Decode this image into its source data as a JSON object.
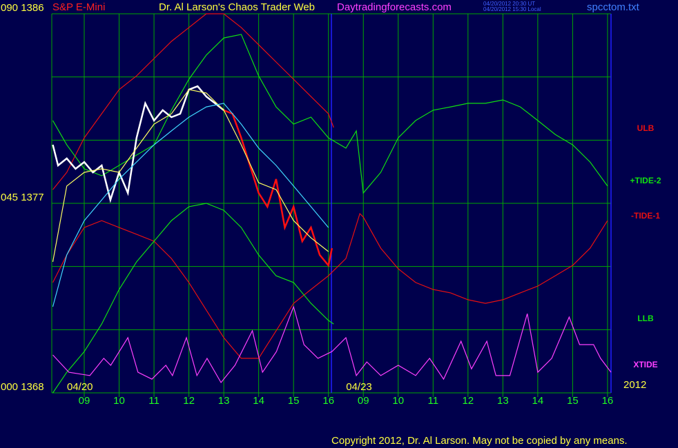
{
  "chart_data": {
    "type": "line",
    "instrument": "S&P E-Mini",
    "title": "Dr. Al Larson's Chaos Trader Web",
    "site": "Daytradingforecasts.com",
    "timestamps": [
      "04/20/2012 20:30 UT",
      "04/20/2012 15:30 Local"
    ],
    "file": "spcctom.txt",
    "year": "2012",
    "copyright": "Copyright 2012, Dr. Al Larson. May not be copied by any means.",
    "background": "#00004c",
    "grid_color": "#00a800",
    "xlim": [
      0.07,
      16.1
    ],
    "ylim": [
      1368,
      1386
    ],
    "xticks": [
      {
        "value": 1,
        "label": "09"
      },
      {
        "value": 2,
        "label": "10"
      },
      {
        "value": 3,
        "label": "11"
      },
      {
        "value": 4,
        "label": "12"
      },
      {
        "value": 5,
        "label": "13"
      },
      {
        "value": 6,
        "label": "14"
      },
      {
        "value": 7,
        "label": "15"
      },
      {
        "value": 8,
        "label": "16"
      },
      {
        "value": 9,
        "label": "09"
      },
      {
        "value": 10,
        "label": "10"
      },
      {
        "value": 11,
        "label": "11"
      },
      {
        "value": 12,
        "label": "12"
      },
      {
        "value": 13,
        "label": "13"
      },
      {
        "value": 14,
        "label": "14"
      },
      {
        "value": 15,
        "label": "15"
      },
      {
        "value": 16,
        "label": "16"
      }
    ],
    "date_ticks": [
      {
        "value": 1,
        "label": "04/20"
      },
      {
        "value": 9,
        "label": "04/23"
      }
    ],
    "yticks": [
      {
        "value": 1386,
        "label": "090 1386"
      },
      {
        "value": 1377,
        "label": "045 1377"
      },
      {
        "value": 1368,
        "label": "000 1368"
      }
    ],
    "ygrid": [
      1368,
      1371,
      1374,
      1377,
      1380,
      1383,
      1386
    ],
    "series": [
      {
        "name": "ULB",
        "color": "#e81010",
        "x": [
          0.1,
          0.5,
          1,
          2,
          2.5,
          3.5,
          4.5,
          5,
          5.5,
          6.5,
          7,
          7.5,
          8,
          8.15
        ],
        "values": [
          1377.65,
          1378.47,
          1380.11,
          1382.4,
          1383.05,
          1384.69,
          1386,
          1386,
          1385.35,
          1383.71,
          1382.89,
          1382.07,
          1381.25,
          1380.6
        ]
      },
      {
        "name": "+TIDE-2",
        "color": "#10e010",
        "x": [
          0.1,
          0.5,
          1,
          1.5,
          2,
          2.5,
          3,
          3.5,
          4,
          4.5,
          5,
          5.5,
          6,
          6.5,
          7,
          7.5,
          8,
          8.5,
          8.8,
          9,
          9.5,
          10,
          10.5,
          11,
          11.5,
          12,
          12.5,
          13,
          13.5,
          14,
          14.5,
          15,
          15.5,
          16
        ],
        "values": [
          1380.93,
          1379.78,
          1378.64,
          1378.31,
          1378.8,
          1379.29,
          1379.78,
          1381.42,
          1382.89,
          1384.04,
          1384.85,
          1385.02,
          1383.05,
          1381.58,
          1380.76,
          1381.09,
          1380.11,
          1379.62,
          1380.44,
          1377.49,
          1378.47,
          1380.11,
          1380.93,
          1381.42,
          1381.58,
          1381.75,
          1381.75,
          1381.91,
          1381.58,
          1380.93,
          1380.27,
          1379.78,
          1378.96,
          1377.82
        ]
      },
      {
        "name": "-TIDE-1",
        "color": "#e81010",
        "x": [
          0.1,
          0.5,
          1,
          1.5,
          2,
          2.5,
          3,
          3.5,
          4,
          4.5,
          5,
          5.5,
          6,
          6.5,
          7,
          7.5,
          8,
          8.5,
          8.9,
          9,
          9.5,
          10,
          10.5,
          11,
          11.5,
          12,
          12.5,
          13,
          13.5,
          14,
          14.5,
          15,
          15.5,
          16
        ],
        "values": [
          1373.24,
          1374.55,
          1375.85,
          1376.18,
          1375.85,
          1375.53,
          1375.2,
          1374.38,
          1373.24,
          1371.93,
          1370.62,
          1369.64,
          1369.64,
          1370.95,
          1372.25,
          1372.91,
          1373.56,
          1374.38,
          1376.51,
          1376.35,
          1374.87,
          1373.89,
          1373.24,
          1372.91,
          1372.75,
          1372.42,
          1372.25,
          1372.42,
          1372.75,
          1373.07,
          1373.56,
          1374.05,
          1374.87,
          1376.18
        ]
      },
      {
        "name": "LLB",
        "color": "#10e010",
        "x": [
          0.1,
          0.5,
          1,
          1.5,
          2,
          2.5,
          3,
          3.5,
          4,
          4.5,
          5,
          5.5,
          6,
          6.5,
          7,
          7.5,
          8,
          8.15
        ],
        "values": [
          1368,
          1368.98,
          1369.96,
          1371.27,
          1372.91,
          1374.22,
          1375.2,
          1376.18,
          1376.84,
          1377,
          1376.67,
          1375.85,
          1374.55,
          1373.56,
          1373.24,
          1372.25,
          1371.44,
          1371.27
        ]
      },
      {
        "name": "XTIDE",
        "color": "#ff40ff",
        "x": [
          0.1,
          0.56,
          1.16,
          1.56,
          1.76,
          2.25,
          2.54,
          2.94,
          3.34,
          3.53,
          3.93,
          4.23,
          4.52,
          4.92,
          5.32,
          5.82,
          6.11,
          6.51,
          7.0,
          7.3,
          7.7,
          8.1,
          8.5,
          8.8,
          9.1,
          9.5,
          10.0,
          10.5,
          10.9,
          11.3,
          11.8,
          12.1,
          12.54,
          12.8,
          13.2,
          13.7,
          14.0,
          14.4,
          14.9,
          15.2,
          15.6,
          15.8,
          16.1
        ],
        "values": [
          1369.8,
          1368.98,
          1368.82,
          1369.64,
          1369.31,
          1370.62,
          1368.98,
          1368.65,
          1369.31,
          1368.82,
          1370.62,
          1368.82,
          1369.64,
          1368.49,
          1369.31,
          1370.95,
          1368.98,
          1369.96,
          1372.09,
          1370.29,
          1369.64,
          1369.96,
          1370.62,
          1368.82,
          1369.47,
          1368.82,
          1369.31,
          1368.82,
          1369.64,
          1368.65,
          1370.45,
          1369.14,
          1370.45,
          1368.82,
          1368.82,
          1371.76,
          1368.98,
          1369.64,
          1371.6,
          1370.29,
          1370.29,
          1369.64,
          1368.98
        ]
      },
      {
        "color": "#ffffff",
        "x": [
          0.1,
          0.25,
          0.5,
          0.75,
          1,
          1.25,
          1.5,
          1.75,
          2,
          2.25,
          2.5,
          2.75,
          3,
          3.25,
          3.5,
          3.75,
          4,
          4.25,
          4.5,
          4.75,
          5
        ],
        "values": [
          1379.78,
          1378.8,
          1379.13,
          1378.64,
          1378.96,
          1378.47,
          1378.8,
          1377.16,
          1378.47,
          1377.49,
          1380.11,
          1381.75,
          1380.93,
          1381.42,
          1381.09,
          1381.25,
          1382.4,
          1382.56,
          1382.07,
          1381.75,
          1381.42
        ]
      },
      {
        "color": "#ff1010",
        "x": [
          5,
          5.25,
          5.5,
          5.75,
          6,
          6.25,
          6.5,
          6.75,
          7,
          7.25,
          7.5,
          7.75,
          8,
          8.1
        ],
        "values": [
          1381.42,
          1381.25,
          1380.11,
          1378.8,
          1377.49,
          1376.84,
          1378.15,
          1375.85,
          1376.84,
          1375.2,
          1375.85,
          1374.55,
          1374.05,
          1374.87
        ]
      },
      {
        "color": "#ffff60",
        "x": [
          0.1,
          0.5,
          1,
          1.5,
          2,
          2.5,
          3,
          3.5,
          4,
          4.5,
          5,
          5.5,
          6,
          6.5,
          7,
          7.5,
          8
        ],
        "values": [
          1374.22,
          1377.82,
          1378.47,
          1378.64,
          1378.47,
          1379.62,
          1380.76,
          1381.25,
          1382.4,
          1382.24,
          1381.42,
          1379.78,
          1377.98,
          1377.65,
          1376.18,
          1375.36,
          1374.71
        ]
      },
      {
        "color": "#40d8ff",
        "x": [
          0.1,
          0.5,
          1,
          1.5,
          2,
          2.5,
          3,
          3.5,
          4,
          4.5,
          5,
          5.5,
          6,
          6.5,
          7,
          7.5,
          8
        ],
        "values": [
          1372.09,
          1374.55,
          1376.18,
          1377.16,
          1378.15,
          1378.96,
          1379.78,
          1380.44,
          1381.09,
          1381.58,
          1381.75,
          1380.76,
          1379.62,
          1378.8,
          1377.82,
          1376.84,
          1375.85
        ]
      }
    ]
  }
}
